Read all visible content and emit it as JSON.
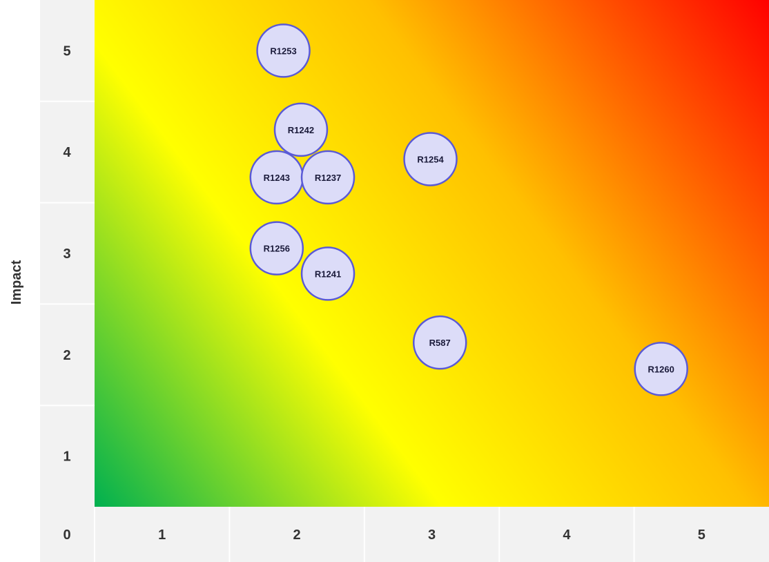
{
  "chart_data": {
    "type": "scatter",
    "title": "",
    "xlabel": "",
    "ylabel": "Impact",
    "xlim": [
      0.5,
      5.5
    ],
    "ylim": [
      0.5,
      5.5
    ],
    "x_ticks": [
      "1",
      "2",
      "3",
      "4",
      "5"
    ],
    "y_ticks": [
      "1",
      "2",
      "3",
      "4",
      "5"
    ],
    "corner_label": "0",
    "grid": true,
    "background": "heat-gradient (green bottom-left to red top-right)",
    "colors": {
      "bubble_fill": "#dcdcf8",
      "bubble_stroke": "#5a5ad6",
      "gradient_green": "#00b050",
      "gradient_yellow": "#ffff00",
      "gradient_orange": "#ffc000",
      "gradient_red": "#ff0000",
      "axis_band": "#f2f2f2"
    },
    "points": [
      {
        "label": "R1253",
        "x": 1.9,
        "y": 5.0
      },
      {
        "label": "R1242",
        "x": 2.03,
        "y": 4.22
      },
      {
        "label": "R1243",
        "x": 1.85,
        "y": 3.75
      },
      {
        "label": "R1237",
        "x": 2.23,
        "y": 3.75
      },
      {
        "label": "R1254",
        "x": 2.99,
        "y": 3.93
      },
      {
        "label": "R1256",
        "x": 1.85,
        "y": 3.05
      },
      {
        "label": "R1241",
        "x": 2.23,
        "y": 2.8
      },
      {
        "label": "R587",
        "x": 3.06,
        "y": 2.12
      },
      {
        "label": "R1260",
        "x": 4.7,
        "y": 1.86
      }
    ]
  }
}
